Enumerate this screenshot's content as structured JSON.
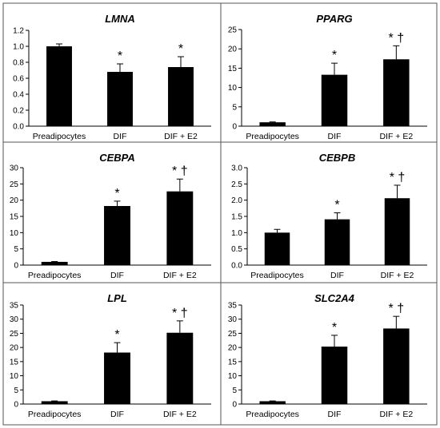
{
  "chart_data": [
    {
      "type": "bar",
      "title": "LMNA",
      "categories": [
        "Preadipocytes",
        "DIF",
        "DIF + E2"
      ],
      "values": [
        1.0,
        0.68,
        0.74
      ],
      "errors": [
        0.03,
        0.1,
        0.13
      ],
      "annotations": [
        "",
        "*",
        "*"
      ],
      "ylim": [
        0,
        1.2
      ],
      "yticks": [
        "0.0",
        "0.2",
        "0.4",
        "0.6",
        "0.8",
        "1.0",
        "1.2"
      ],
      "bar_color": "#000000"
    },
    {
      "type": "bar",
      "title": "PPARG",
      "categories": [
        "Preadipocytes",
        "DIF",
        "DIF + E2"
      ],
      "values": [
        1.0,
        13.3,
        17.3
      ],
      "errors": [
        0.1,
        3.0,
        3.5
      ],
      "annotations": [
        "",
        "*",
        "* †"
      ],
      "ylim": [
        0,
        25
      ],
      "yticks": [
        "0",
        "5",
        "10",
        "15",
        "20",
        "25"
      ],
      "bar_color": "#000000"
    },
    {
      "type": "bar",
      "title": "CEBPA",
      "categories": [
        "Preadipocytes",
        "DIF",
        "DIF + E2"
      ],
      "values": [
        1.0,
        18.2,
        22.7
      ],
      "errors": [
        0.1,
        1.5,
        3.8
      ],
      "annotations": [
        "",
        "*",
        "* †"
      ],
      "ylim": [
        0,
        30
      ],
      "yticks": [
        "0",
        "5",
        "10",
        "15",
        "20",
        "25",
        "30"
      ],
      "bar_color": "#000000"
    },
    {
      "type": "bar",
      "title": "CEBPB",
      "categories": [
        "Preadipocytes",
        "DIF",
        "DIF + E2"
      ],
      "values": [
        1.0,
        1.41,
        2.06
      ],
      "errors": [
        0.1,
        0.2,
        0.4
      ],
      "annotations": [
        "",
        "*",
        "* †"
      ],
      "ylim": [
        0,
        3.0
      ],
      "yticks": [
        "0.0",
        "0.5",
        "1.0",
        "1.5",
        "2.0",
        "2.5",
        "3.0"
      ],
      "bar_color": "#000000"
    },
    {
      "type": "bar",
      "title": "LPL",
      "categories": [
        "Preadipocytes",
        "DIF",
        "DIF + E2"
      ],
      "values": [
        1.0,
        18.2,
        25.2
      ],
      "errors": [
        0.1,
        3.5,
        4.2
      ],
      "annotations": [
        "",
        "*",
        "* †"
      ],
      "ylim": [
        0,
        35
      ],
      "yticks": [
        "0",
        "5",
        "10",
        "15",
        "20",
        "25",
        "30",
        "35"
      ],
      "bar_color": "#000000"
    },
    {
      "type": "bar",
      "title": "SLC2A4",
      "categories": [
        "Preadipocytes",
        "DIF",
        "DIF + E2"
      ],
      "values": [
        1.0,
        20.3,
        26.7
      ],
      "errors": [
        0.1,
        4.0,
        4.3
      ],
      "annotations": [
        "",
        "*",
        "* †"
      ],
      "ylim": [
        0,
        35
      ],
      "yticks": [
        "0",
        "5",
        "10",
        "15",
        "20",
        "25",
        "30",
        "35"
      ],
      "bar_color": "#000000"
    }
  ]
}
